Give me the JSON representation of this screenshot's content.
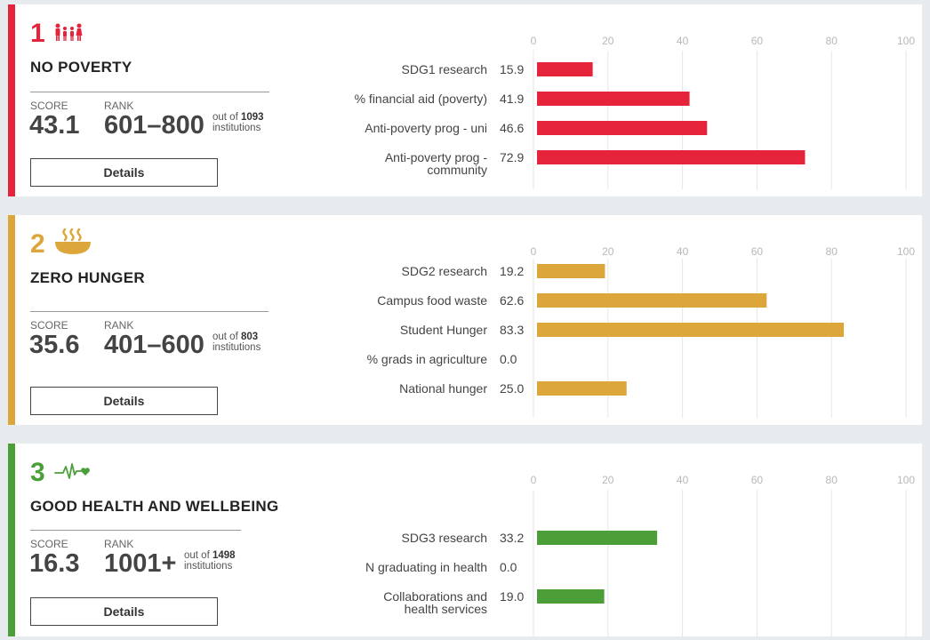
{
  "labels": {
    "score": "SCORE",
    "rank": "RANK",
    "out_of": "out of",
    "institutions": "institutions",
    "details": "Details"
  },
  "chart_data": [
    {
      "type": "bar",
      "orientation": "horizontal",
      "goal_number": "1",
      "title": "NO POVERTY",
      "score": "43.1",
      "rank": "601–800",
      "out_of_count": "1093",
      "color": "#e5243b",
      "icon": "people-family-icon",
      "xlim": [
        0,
        100
      ],
      "ticks": [
        "0",
        "20",
        "40",
        "60",
        "80",
        "100"
      ],
      "categories": [
        "SDG1 research",
        "% financial aid (poverty)",
        "Anti-poverty prog - uni",
        "Anti-poverty prog - community"
      ],
      "category_lines": [
        [
          "SDG1 research"
        ],
        [
          "% financial aid (poverty)"
        ],
        [
          "Anti-poverty prog - uni"
        ],
        [
          "Anti-poverty prog -",
          "community"
        ]
      ],
      "values": [
        15.9,
        41.9,
        46.6,
        72.9
      ],
      "value_labels": [
        "15.9",
        "41.9",
        "46.6",
        "72.9"
      ]
    },
    {
      "type": "bar",
      "orientation": "horizontal",
      "goal_number": "2",
      "title": "ZERO HUNGER",
      "score": "35.6",
      "rank": "401–600",
      "out_of_count": "803",
      "color": "#dda63a",
      "icon": "food-bowl-icon",
      "xlim": [
        0,
        100
      ],
      "ticks": [
        "0",
        "20",
        "40",
        "60",
        "80",
        "100"
      ],
      "categories": [
        "SDG2 research",
        "Campus food waste",
        "Student Hunger",
        "% grads in agriculture",
        "National hunger"
      ],
      "category_lines": [
        [
          "SDG2 research"
        ],
        [
          "Campus food waste"
        ],
        [
          "Student Hunger"
        ],
        [
          "% grads in agriculture"
        ],
        [
          "National hunger"
        ]
      ],
      "values": [
        19.2,
        62.6,
        83.3,
        0.0,
        25.0
      ],
      "value_labels": [
        "19.2",
        "62.6",
        "83.3",
        "0.0",
        "25.0"
      ]
    },
    {
      "type": "bar",
      "orientation": "horizontal",
      "goal_number": "3",
      "title": "GOOD HEALTH AND WELLBEING",
      "score": "16.3",
      "rank": "1001+",
      "out_of_count": "1498",
      "color": "#4c9f38",
      "icon": "heartbeat-icon",
      "xlim": [
        0,
        100
      ],
      "ticks": [
        "0",
        "20",
        "40",
        "60",
        "80",
        "100"
      ],
      "categories": [
        "SDG3 research",
        "N graduating in health",
        "Collaborations and health services"
      ],
      "category_lines": [
        [
          "SDG3 research"
        ],
        [
          "N graduating in health"
        ],
        [
          "Collaborations and",
          "health services"
        ]
      ],
      "values": [
        33.2,
        0.0,
        19.0
      ],
      "value_labels": [
        "33.2",
        "0.0",
        "19.0"
      ]
    }
  ]
}
